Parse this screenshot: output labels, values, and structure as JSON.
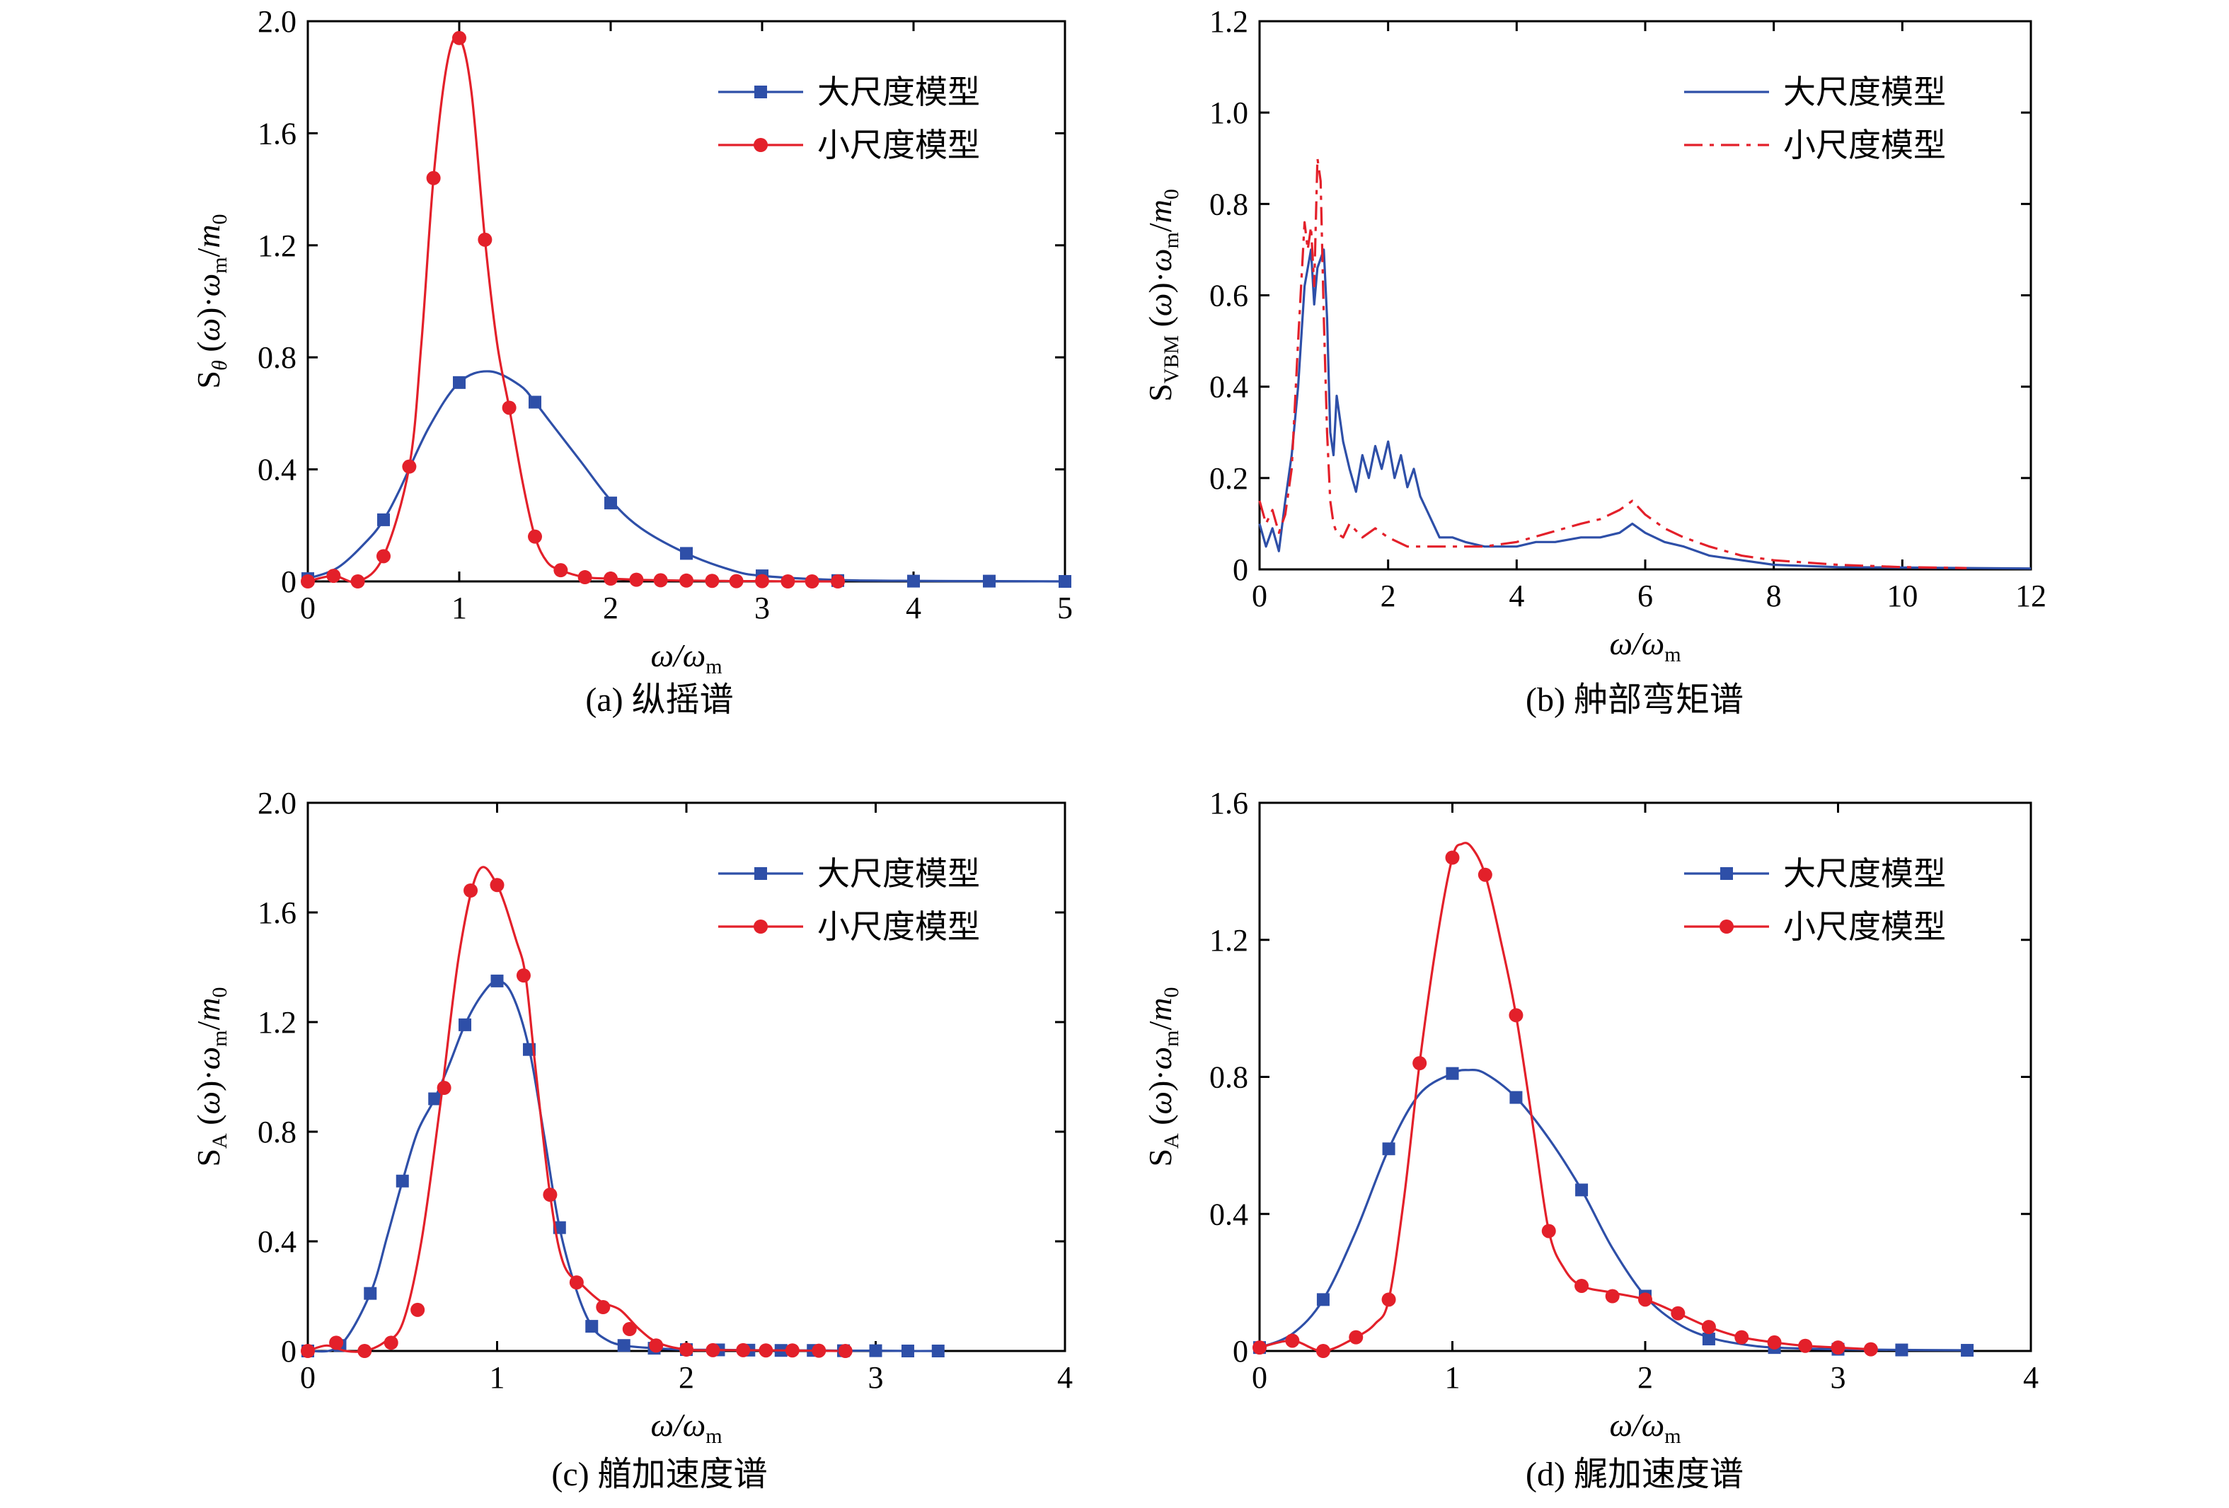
{
  "colors": {
    "large": "#2e4fa8",
    "small": "#e3202a",
    "axis": "#000000"
  },
  "charts": [
    {
      "id": "a",
      "type": "line",
      "caption": "(a) 纵摇谱",
      "ylabel": {
        "base": "S",
        "sub": "θ",
        "rest": " (ω)·ω",
        "sub2": "m",
        "rest2": "/m",
        "sub3": "0"
      },
      "xlabel": {
        "base": "ω/ω",
        "sub": "m"
      },
      "xlim": [
        0,
        5
      ],
      "ylim": [
        0,
        2.0
      ],
      "xticks": [
        "0",
        "1",
        "2",
        "3",
        "4",
        "5"
      ],
      "yticks": [
        "0",
        "0.4",
        "0.8",
        "1.2",
        "1.6",
        "2.0"
      ],
      "legend_position": "top-right",
      "series": [
        {
          "name": "大尺度模型",
          "color_key": "large",
          "style": "solid",
          "marker": "square",
          "x": [
            0,
            0.2,
            0.4,
            0.5,
            0.6,
            0.8,
            1.0,
            1.2,
            1.4,
            1.5,
            1.6,
            1.8,
            2.0,
            2.2,
            2.5,
            2.8,
            3.0,
            3.5,
            4.0,
            4.5,
            5.0
          ],
          "y": [
            0.01,
            0.05,
            0.15,
            0.22,
            0.32,
            0.55,
            0.71,
            0.75,
            0.7,
            0.64,
            0.57,
            0.43,
            0.29,
            0.19,
            0.1,
            0.04,
            0.02,
            0.005,
            0.002,
            0.001,
            0.0
          ],
          "markers_x": [
            0,
            0.5,
            1.0,
            1.5,
            2.0,
            2.5,
            3.0,
            3.5,
            4.0,
            4.5,
            5.0
          ],
          "markers_y": [
            0.01,
            0.22,
            0.71,
            0.64,
            0.28,
            0.1,
            0.02,
            0.003,
            0.001,
            0.001,
            0.0
          ]
        },
        {
          "name": "小尺度模型",
          "color_key": "small",
          "style": "solid",
          "marker": "circle",
          "x": [
            0,
            0.17,
            0.33,
            0.5,
            0.67,
            0.75,
            0.83,
            0.92,
            1.0,
            1.08,
            1.17,
            1.25,
            1.33,
            1.42,
            1.5,
            1.58,
            1.67,
            1.83,
            2.0,
            2.17,
            2.33,
            2.5,
            2.67,
            2.83,
            3.0,
            3.17,
            3.33,
            3.5
          ],
          "y": [
            0.0,
            0.02,
            0.0,
            0.09,
            0.41,
            0.85,
            1.44,
            1.85,
            1.94,
            1.75,
            1.22,
            0.85,
            0.62,
            0.35,
            0.16,
            0.07,
            0.04,
            0.015,
            0.01,
            0.006,
            0.004,
            0.003,
            0.002,
            0.001,
            0.001,
            0.0,
            0.0,
            0.0
          ],
          "markers_x": [
            0,
            0.17,
            0.33,
            0.5,
            0.67,
            0.83,
            1.0,
            1.17,
            1.33,
            1.5,
            1.67,
            1.83,
            2.0,
            2.17,
            2.33,
            2.5,
            2.67,
            2.83,
            3.0,
            3.17,
            3.33,
            3.5
          ],
          "markers_y": [
            0.0,
            0.02,
            0.0,
            0.09,
            0.41,
            1.44,
            1.94,
            1.22,
            0.62,
            0.16,
            0.04,
            0.015,
            0.01,
            0.006,
            0.004,
            0.003,
            0.002,
            0.001,
            0.001,
            0.0,
            0.0,
            0.0
          ]
        }
      ]
    },
    {
      "id": "b",
      "type": "line",
      "caption": "(b) 舯部弯矩谱",
      "ylabel": {
        "base": "S",
        "sub": "VBM",
        "rest": " (ω)·ω",
        "sub2": "m",
        "rest2": "/m",
        "sub3": "0"
      },
      "xlabel": {
        "base": "ω/ω",
        "sub": "m"
      },
      "xlim": [
        0,
        12
      ],
      "ylim": [
        0,
        1.2
      ],
      "xticks": [
        "0",
        "2",
        "4",
        "6",
        "8",
        "10",
        "12"
      ],
      "yticks": [
        "0",
        "0.2",
        "0.4",
        "0.6",
        "0.8",
        "1.0",
        "1.2"
      ],
      "legend_position": "top-right",
      "series": [
        {
          "name": "大尺度模型",
          "color_key": "large",
          "style": "solid",
          "marker": "none",
          "x": [
            0,
            0.1,
            0.2,
            0.3,
            0.4,
            0.5,
            0.6,
            0.7,
            0.8,
            0.85,
            0.9,
            0.95,
            1.0,
            1.05,
            1.1,
            1.15,
            1.2,
            1.3,
            1.4,
            1.5,
            1.6,
            1.7,
            1.8,
            1.9,
            2.0,
            2.1,
            2.2,
            2.3,
            2.4,
            2.5,
            2.6,
            2.7,
            2.8,
            3.0,
            3.2,
            3.5,
            3.8,
            4.0,
            4.3,
            4.6,
            5.0,
            5.3,
            5.6,
            5.8,
            6.0,
            6.3,
            6.6,
            7.0,
            7.5,
            8.0,
            9.0,
            10.0,
            11.0,
            12.0
          ],
          "y": [
            0.1,
            0.05,
            0.09,
            0.04,
            0.15,
            0.25,
            0.4,
            0.62,
            0.7,
            0.58,
            0.66,
            0.68,
            0.7,
            0.55,
            0.3,
            0.25,
            0.38,
            0.28,
            0.22,
            0.17,
            0.25,
            0.2,
            0.27,
            0.22,
            0.28,
            0.2,
            0.25,
            0.18,
            0.22,
            0.16,
            0.13,
            0.1,
            0.07,
            0.07,
            0.06,
            0.05,
            0.05,
            0.05,
            0.06,
            0.06,
            0.07,
            0.07,
            0.08,
            0.1,
            0.08,
            0.06,
            0.05,
            0.03,
            0.02,
            0.01,
            0.005,
            0.004,
            0.003,
            0.002
          ]
        },
        {
          "name": "小尺度模型",
          "color_key": "small",
          "style": "dashdot",
          "marker": "none",
          "x": [
            0,
            0.1,
            0.2,
            0.3,
            0.4,
            0.5,
            0.6,
            0.7,
            0.75,
            0.8,
            0.85,
            0.9,
            0.95,
            1.0,
            1.05,
            1.1,
            1.15,
            1.2,
            1.3,
            1.4,
            1.6,
            1.8,
            2.0,
            2.3,
            2.6,
            3.0,
            3.5,
            4.0,
            4.5,
            5.0,
            5.3,
            5.6,
            5.8,
            6.0,
            6.3,
            6.6,
            7.0,
            7.5,
            8.0,
            8.5,
            9.0,
            10.0,
            11.0
          ],
          "y": [
            0.15,
            0.1,
            0.13,
            0.08,
            0.12,
            0.22,
            0.5,
            0.76,
            0.7,
            0.75,
            0.62,
            0.9,
            0.85,
            0.55,
            0.3,
            0.15,
            0.1,
            0.08,
            0.07,
            0.1,
            0.07,
            0.09,
            0.07,
            0.05,
            0.05,
            0.05,
            0.05,
            0.06,
            0.08,
            0.1,
            0.11,
            0.13,
            0.15,
            0.12,
            0.09,
            0.07,
            0.05,
            0.03,
            0.02,
            0.015,
            0.01,
            0.005,
            0.003
          ]
        }
      ]
    },
    {
      "id": "c",
      "type": "line",
      "caption": "(c) 艏加速度谱",
      "ylabel": {
        "base": "S",
        "sub": "A",
        "rest": " (ω)·ω",
        "sub2": "m",
        "rest2": "/m",
        "sub3": "0"
      },
      "xlabel": {
        "base": "ω/ω",
        "sub": "m"
      },
      "xlim": [
        0,
        4
      ],
      "ylim": [
        0,
        2.0
      ],
      "xticks": [
        "0",
        "1",
        "2",
        "3",
        "4"
      ],
      "yticks": [
        "0",
        "0.4",
        "0.8",
        "1.2",
        "1.6",
        "2.0"
      ],
      "legend_position": "top-right",
      "series": [
        {
          "name": "大尺度模型",
          "color_key": "large",
          "style": "solid",
          "marker": "square",
          "x": [
            0,
            0.17,
            0.33,
            0.42,
            0.5,
            0.58,
            0.67,
            0.75,
            0.83,
            0.92,
            1.0,
            1.08,
            1.17,
            1.25,
            1.33,
            1.42,
            1.5,
            1.58,
            1.67,
            1.83,
            2.0,
            2.17,
            2.33,
            2.5,
            2.67,
            2.83,
            3.0,
            3.17,
            3.33
          ],
          "y": [
            0.0,
            0.02,
            0.21,
            0.42,
            0.62,
            0.8,
            0.92,
            1.05,
            1.19,
            1.3,
            1.35,
            1.3,
            1.1,
            0.78,
            0.45,
            0.22,
            0.09,
            0.04,
            0.02,
            0.01,
            0.005,
            0.004,
            0.003,
            0.002,
            0.002,
            0.001,
            0.001,
            0.0,
            0.0
          ],
          "markers_x": [
            0,
            0.17,
            0.33,
            0.5,
            0.67,
            0.83,
            1.0,
            1.17,
            1.33,
            1.5,
            1.67,
            1.83,
            2.0,
            2.17,
            2.33,
            2.5,
            2.67,
            2.83,
            3.0,
            3.17,
            3.33
          ],
          "markers_y": [
            0.0,
            0.02,
            0.21,
            0.62,
            0.92,
            1.19,
            1.35,
            1.1,
            0.45,
            0.09,
            0.02,
            0.01,
            0.005,
            0.004,
            0.003,
            0.002,
            0.002,
            0.001,
            0.001,
            0.0,
            0.0
          ]
        },
        {
          "name": "小尺度模型",
          "color_key": "small",
          "style": "solid",
          "marker": "circle",
          "x": [
            0,
            0.1,
            0.2,
            0.3,
            0.4,
            0.5,
            0.6,
            0.7,
            0.8,
            0.9,
            1.0,
            1.1,
            1.15,
            1.2,
            1.28,
            1.35,
            1.45,
            1.55,
            1.65,
            1.75,
            1.85,
            2.0,
            2.2,
            2.5,
            2.8
          ],
          "y": [
            0.0,
            0.02,
            0.0,
            0.0,
            0.03,
            0.1,
            0.4,
            0.9,
            1.45,
            1.75,
            1.7,
            1.5,
            1.37,
            1.05,
            0.57,
            0.32,
            0.24,
            0.18,
            0.15,
            0.08,
            0.03,
            0.005,
            0.003,
            0.002,
            0.0
          ],
          "markers_x": [
            0,
            0.15,
            0.3,
            0.44,
            0.58,
            0.72,
            0.86,
            1.0,
            1.14,
            1.28,
            1.42,
            1.56,
            1.7,
            1.84,
            2.0,
            2.14,
            2.3,
            2.42,
            2.56,
            2.7,
            2.84
          ],
          "markers_y": [
            0.0,
            0.03,
            0.0,
            0.03,
            0.15,
            0.96,
            1.68,
            1.7,
            1.37,
            0.57,
            0.25,
            0.16,
            0.08,
            0.02,
            0.005,
            0.003,
            0.003,
            0.002,
            0.002,
            0.001,
            0.0
          ]
        }
      ]
    },
    {
      "id": "d",
      "type": "line",
      "caption": "(d) 艉加速度谱",
      "ylabel": {
        "base": "S",
        "sub": "A",
        "rest": " (ω)·ω",
        "sub2": "m",
        "rest2": "/m",
        "sub3": "0"
      },
      "xlabel": {
        "base": "ω/ω",
        "sub": "m"
      },
      "xlim": [
        0,
        4
      ],
      "ylim": [
        0,
        1.6
      ],
      "xticks": [
        "0",
        "1",
        "2",
        "3",
        "4"
      ],
      "yticks": [
        "0",
        "0.4",
        "0.8",
        "1.2",
        "1.6"
      ],
      "legend_position": "top-right",
      "series": [
        {
          "name": "大尺度模型",
          "color_key": "large",
          "style": "solid",
          "marker": "square",
          "x": [
            0,
            0.17,
            0.33,
            0.5,
            0.67,
            0.83,
            1.0,
            1.08,
            1.17,
            1.33,
            1.5,
            1.67,
            1.83,
            2.0,
            2.17,
            2.33,
            2.5,
            2.67,
            3.0,
            3.33,
            3.67
          ],
          "y": [
            0.01,
            0.05,
            0.15,
            0.35,
            0.59,
            0.75,
            0.81,
            0.82,
            0.81,
            0.74,
            0.62,
            0.47,
            0.3,
            0.16,
            0.08,
            0.04,
            0.02,
            0.01,
            0.005,
            0.003,
            0.002
          ],
          "markers_x": [
            0,
            0.33,
            0.67,
            1.0,
            1.33,
            1.67,
            2.0,
            2.33,
            2.67,
            3.0,
            3.33,
            3.67
          ],
          "markers_y": [
            0.01,
            0.15,
            0.59,
            0.81,
            0.74,
            0.47,
            0.16,
            0.035,
            0.01,
            0.005,
            0.003,
            0.002
          ]
        },
        {
          "name": "小尺度模型",
          "color_key": "small",
          "style": "solid",
          "marker": "circle",
          "x": [
            0,
            0.17,
            0.33,
            0.5,
            0.6,
            0.67,
            0.75,
            0.83,
            0.92,
            1.0,
            1.05,
            1.1,
            1.17,
            1.25,
            1.33,
            1.42,
            1.5,
            1.58,
            1.67,
            1.83,
            2.0,
            2.17,
            2.33,
            2.5,
            2.67,
            2.83,
            3.0,
            3.17
          ],
          "y": [
            0.01,
            0.03,
            0.0,
            0.04,
            0.08,
            0.15,
            0.45,
            0.84,
            1.2,
            1.44,
            1.48,
            1.47,
            1.39,
            1.2,
            0.98,
            0.65,
            0.35,
            0.24,
            0.19,
            0.17,
            0.15,
            0.11,
            0.07,
            0.04,
            0.025,
            0.015,
            0.01,
            0.005
          ],
          "markers_x": [
            0,
            0.17,
            0.33,
            0.5,
            0.67,
            0.83,
            1.0,
            1.17,
            1.33,
            1.5,
            1.67,
            1.83,
            2.0,
            2.17,
            2.33,
            2.5,
            2.67,
            2.83,
            3.0,
            3.17
          ],
          "markers_y": [
            0.01,
            0.03,
            0.0,
            0.04,
            0.15,
            0.84,
            1.44,
            1.39,
            0.98,
            0.35,
            0.19,
            0.16,
            0.15,
            0.11,
            0.07,
            0.04,
            0.025,
            0.015,
            0.01,
            0.005
          ]
        }
      ]
    }
  ]
}
